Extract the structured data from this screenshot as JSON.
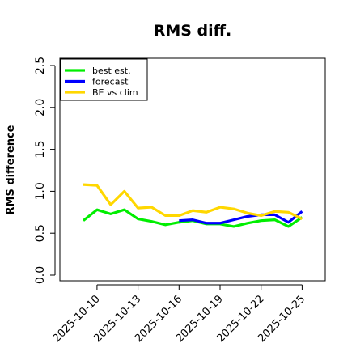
{
  "chart_data": {
    "type": "line",
    "title": "RMS diff.",
    "xlabel": "",
    "ylabel": "RMS difference",
    "ylim": [
      0.0,
      2.5
    ],
    "y_ticks": [
      "0.0",
      "0.5",
      "1.0",
      "1.5",
      "2.0",
      "2.5"
    ],
    "x_ticks": [
      {
        "label": "2025-10-10",
        "color": "#000000"
      },
      {
        "label": "2025-10-13",
        "color": "#000000"
      },
      {
        "label": "2025-10-16",
        "color": "#228B22"
      },
      {
        "label": "2025-10-19",
        "color": "#000000"
      },
      {
        "label": "2025-10-22",
        "color": "#000000"
      },
      {
        "label": "2025-10-25",
        "color": "#000000"
      }
    ],
    "x_dates": [
      "2025-10-09",
      "2025-10-10",
      "2025-10-11",
      "2025-10-12",
      "2025-10-13",
      "2025-10-14",
      "2025-10-15",
      "2025-10-16",
      "2025-10-17",
      "2025-10-18",
      "2025-10-19",
      "2025-10-20",
      "2025-10-21",
      "2025-10-22",
      "2025-10-23",
      "2025-10-24",
      "2025-10-25"
    ],
    "legend_position": "top-left",
    "grid": false,
    "series": [
      {
        "name": "best est.",
        "color": "#00ee00",
        "values": [
          0.65,
          0.78,
          0.73,
          0.78,
          0.67,
          0.64,
          0.6,
          0.63,
          0.65,
          0.61,
          0.61,
          0.58,
          0.62,
          0.65,
          0.66,
          0.58,
          0.69
        ]
      },
      {
        "name": "forecast",
        "color": "#0000ff",
        "values": [
          null,
          null,
          null,
          null,
          null,
          null,
          null,
          0.65,
          0.66,
          0.62,
          0.62,
          0.66,
          0.7,
          0.72,
          0.72,
          0.63,
          0.76
        ]
      },
      {
        "name": "BE vs clim",
        "color": "#ffd700",
        "values": [
          1.08,
          1.07,
          0.84,
          1.0,
          0.8,
          0.81,
          0.71,
          0.71,
          0.77,
          0.75,
          0.81,
          0.79,
          0.74,
          0.71,
          0.76,
          0.75,
          0.67
        ]
      }
    ]
  }
}
